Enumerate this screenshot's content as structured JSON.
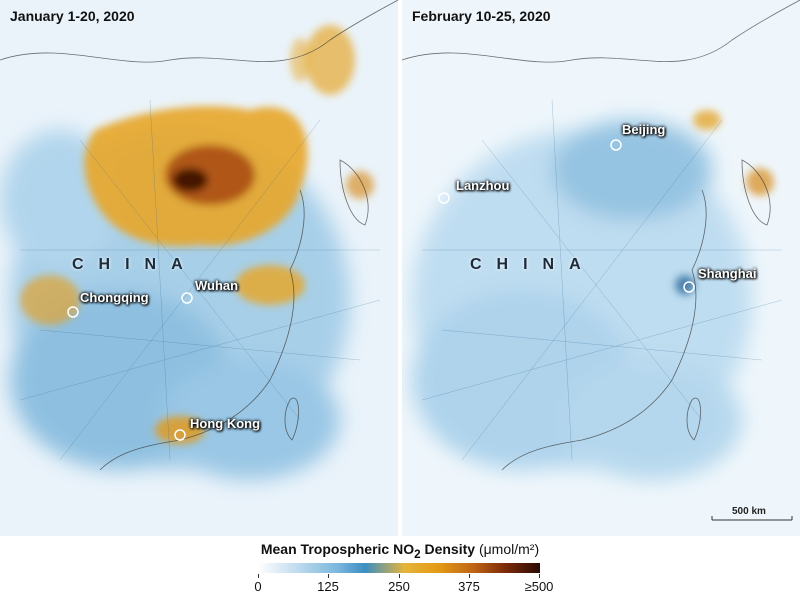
{
  "panels": {
    "left": {
      "title": "January 1-20, 2020",
      "country": "CHINA",
      "cities": [
        "Chongqing",
        "Wuhan",
        "Hong Kong"
      ]
    },
    "right": {
      "title": "February 10-25, 2020",
      "country": "CHINA",
      "cities": [
        "Beijing",
        "Lanzhou",
        "Shanghai"
      ],
      "scale_bar": "500 km"
    }
  },
  "legend": {
    "title_main": "Mean Tropospheric NO",
    "title_sub": "2",
    "title_tail": " Density",
    "units": "(μmol/m²)",
    "ticks": [
      "0",
      "125",
      "250",
      "375",
      "≥500"
    ],
    "range": [
      0,
      500
    ],
    "colors": [
      "#ffffff",
      "#7cb7dd",
      "#3d8ec4",
      "#e5b43a",
      "#e39a14",
      "#7a2a0b",
      "#2a0a04"
    ]
  }
}
